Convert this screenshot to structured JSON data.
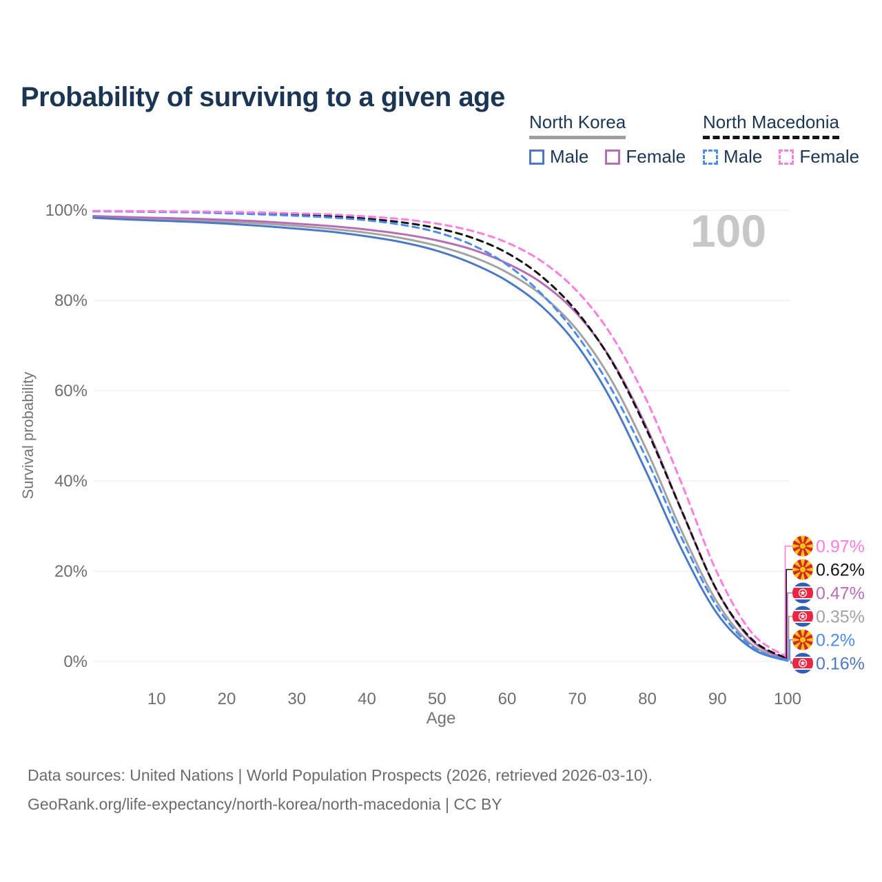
{
  "title": "Probability of surviving to a given age",
  "watermark": "100",
  "legend": {
    "groups": [
      {
        "name": "North Korea",
        "line_style": "solid",
        "underline_color": "#9e9e9e",
        "items": [
          {
            "label": "Male",
            "color": "#4b79c6"
          },
          {
            "label": "Female",
            "color": "#b96cb4"
          }
        ]
      },
      {
        "name": "North Macedonia",
        "line_style": "dashed",
        "underline_color": "#141414",
        "items": [
          {
            "label": "Male",
            "color": "#4b8bf0"
          },
          {
            "label": "Female",
            "color": "#ff7ce1"
          }
        ]
      }
    ]
  },
  "axes": {
    "x_title": "Age",
    "y_title": "Survival probability",
    "x_ticks": [
      {
        "v": 10,
        "label": "10"
      },
      {
        "v": 20,
        "label": "20"
      },
      {
        "v": 30,
        "label": "30"
      },
      {
        "v": 40,
        "label": "40"
      },
      {
        "v": 50,
        "label": "50"
      },
      {
        "v": 60,
        "label": "60"
      },
      {
        "v": 70,
        "label": "70"
      },
      {
        "v": 80,
        "label": "80"
      },
      {
        "v": 90,
        "label": "90"
      },
      {
        "v": 100,
        "label": "100"
      }
    ],
    "y_ticks": [
      {
        "v": 0,
        "label": "0%"
      },
      {
        "v": 20,
        "label": "20%"
      },
      {
        "v": 40,
        "label": "40%"
      },
      {
        "v": 60,
        "label": "60%"
      },
      {
        "v": 80,
        "label": "80%"
      },
      {
        "v": 100,
        "label": "100%"
      }
    ]
  },
  "chart_data": {
    "type": "line",
    "title": "Probability of surviving to a given age",
    "xlabel": "Age",
    "ylabel": "Survival probability",
    "xlim": [
      0,
      100
    ],
    "ylim": [
      0,
      100
    ],
    "grid": "horizontal",
    "legend_position": "top-right",
    "ages": [
      1,
      5,
      10,
      15,
      20,
      25,
      30,
      35,
      40,
      45,
      50,
      55,
      60,
      65,
      70,
      75,
      80,
      85,
      90,
      95,
      100
    ],
    "series": [
      {
        "id": "nk_total",
        "name": "North Korea — Total",
        "country": "North Korea",
        "flag": "kp",
        "color": "#a3a3a3",
        "dash": "solid",
        "end_label": "0.35%",
        "label_rank": 3,
        "values": [
          98.5,
          98.25,
          98.0,
          97.75,
          97.45,
          97.05,
          96.5,
          95.85,
          95.0,
          93.8,
          92.1,
          89.7,
          86.2,
          81.1,
          73.4,
          62.0,
          46.5,
          28.5,
          13.0,
          3.6,
          0.35
        ]
      },
      {
        "id": "nk_female",
        "name": "North Korea — Female",
        "country": "North Korea",
        "flag": "kp",
        "color": "#b96cb4",
        "dash": "solid",
        "end_label": "0.47%",
        "label_rank": 2,
        "values": [
          98.7,
          98.5,
          98.3,
          98.1,
          97.85,
          97.5,
          97.0,
          96.45,
          95.7,
          94.7,
          93.3,
          91.3,
          88.2,
          83.8,
          77.0,
          66.5,
          51.5,
          33.0,
          15.5,
          4.5,
          0.47
        ]
      },
      {
        "id": "nk_male",
        "name": "North Korea — Male",
        "country": "North Korea",
        "flag": "kp",
        "color": "#4b79c6",
        "dash": "solid",
        "end_label": "0.16%",
        "label_rank": 5,
        "values": [
          98.3,
          98.0,
          97.7,
          97.4,
          97.0,
          96.5,
          95.9,
          95.2,
          94.2,
          92.9,
          91.0,
          88.2,
          84.3,
          78.6,
          70.0,
          57.5,
          41.5,
          24.5,
          10.5,
          2.8,
          0.16
        ]
      },
      {
        "id": "nm_total",
        "name": "North Macedonia — Total",
        "country": "North Macedonia",
        "flag": "mk",
        "color": "#141414",
        "dash": "dashed",
        "end_label": "0.62%",
        "label_rank": 1,
        "values": [
          99.8,
          99.75,
          99.7,
          99.6,
          99.45,
          99.25,
          99.0,
          98.65,
          98.1,
          97.3,
          96.0,
          93.9,
          90.5,
          85.2,
          77.4,
          66.3,
          51.0,
          33.0,
          15.5,
          4.8,
          0.62
        ]
      },
      {
        "id": "nm_male",
        "name": "North Macedonia — Male",
        "country": "North Macedonia",
        "flag": "mk",
        "color": "#4b8bf0",
        "dash": "dashed",
        "end_label": "0.2%",
        "label_rank": 4,
        "values": [
          99.75,
          99.7,
          99.6,
          99.5,
          99.3,
          99.05,
          98.75,
          98.35,
          97.75,
          96.75,
          95.1,
          92.3,
          87.9,
          81.3,
          72.2,
          60.0,
          44.5,
          27.0,
          12.0,
          3.2,
          0.2
        ]
      },
      {
        "id": "nm_female",
        "name": "North Macedonia — Female",
        "country": "North Macedonia",
        "flag": "mk",
        "color": "#ff7ce1",
        "dash": "dashed",
        "end_label": "0.97%",
        "label_rank": 0,
        "values": [
          99.85,
          99.8,
          99.75,
          99.7,
          99.6,
          99.5,
          99.3,
          99.05,
          98.6,
          98.0,
          97.0,
          95.4,
          92.8,
          88.6,
          82.0,
          72.0,
          57.5,
          39.0,
          19.5,
          6.2,
          0.97
        ]
      }
    ]
  },
  "footer": {
    "line1": "Data sources: United Nations | World Population Prospects (2026, retrieved 2026-03-10).",
    "line2": "GeoRank.org/life-expectancy/north-korea/north-macedonia | CC BY"
  }
}
